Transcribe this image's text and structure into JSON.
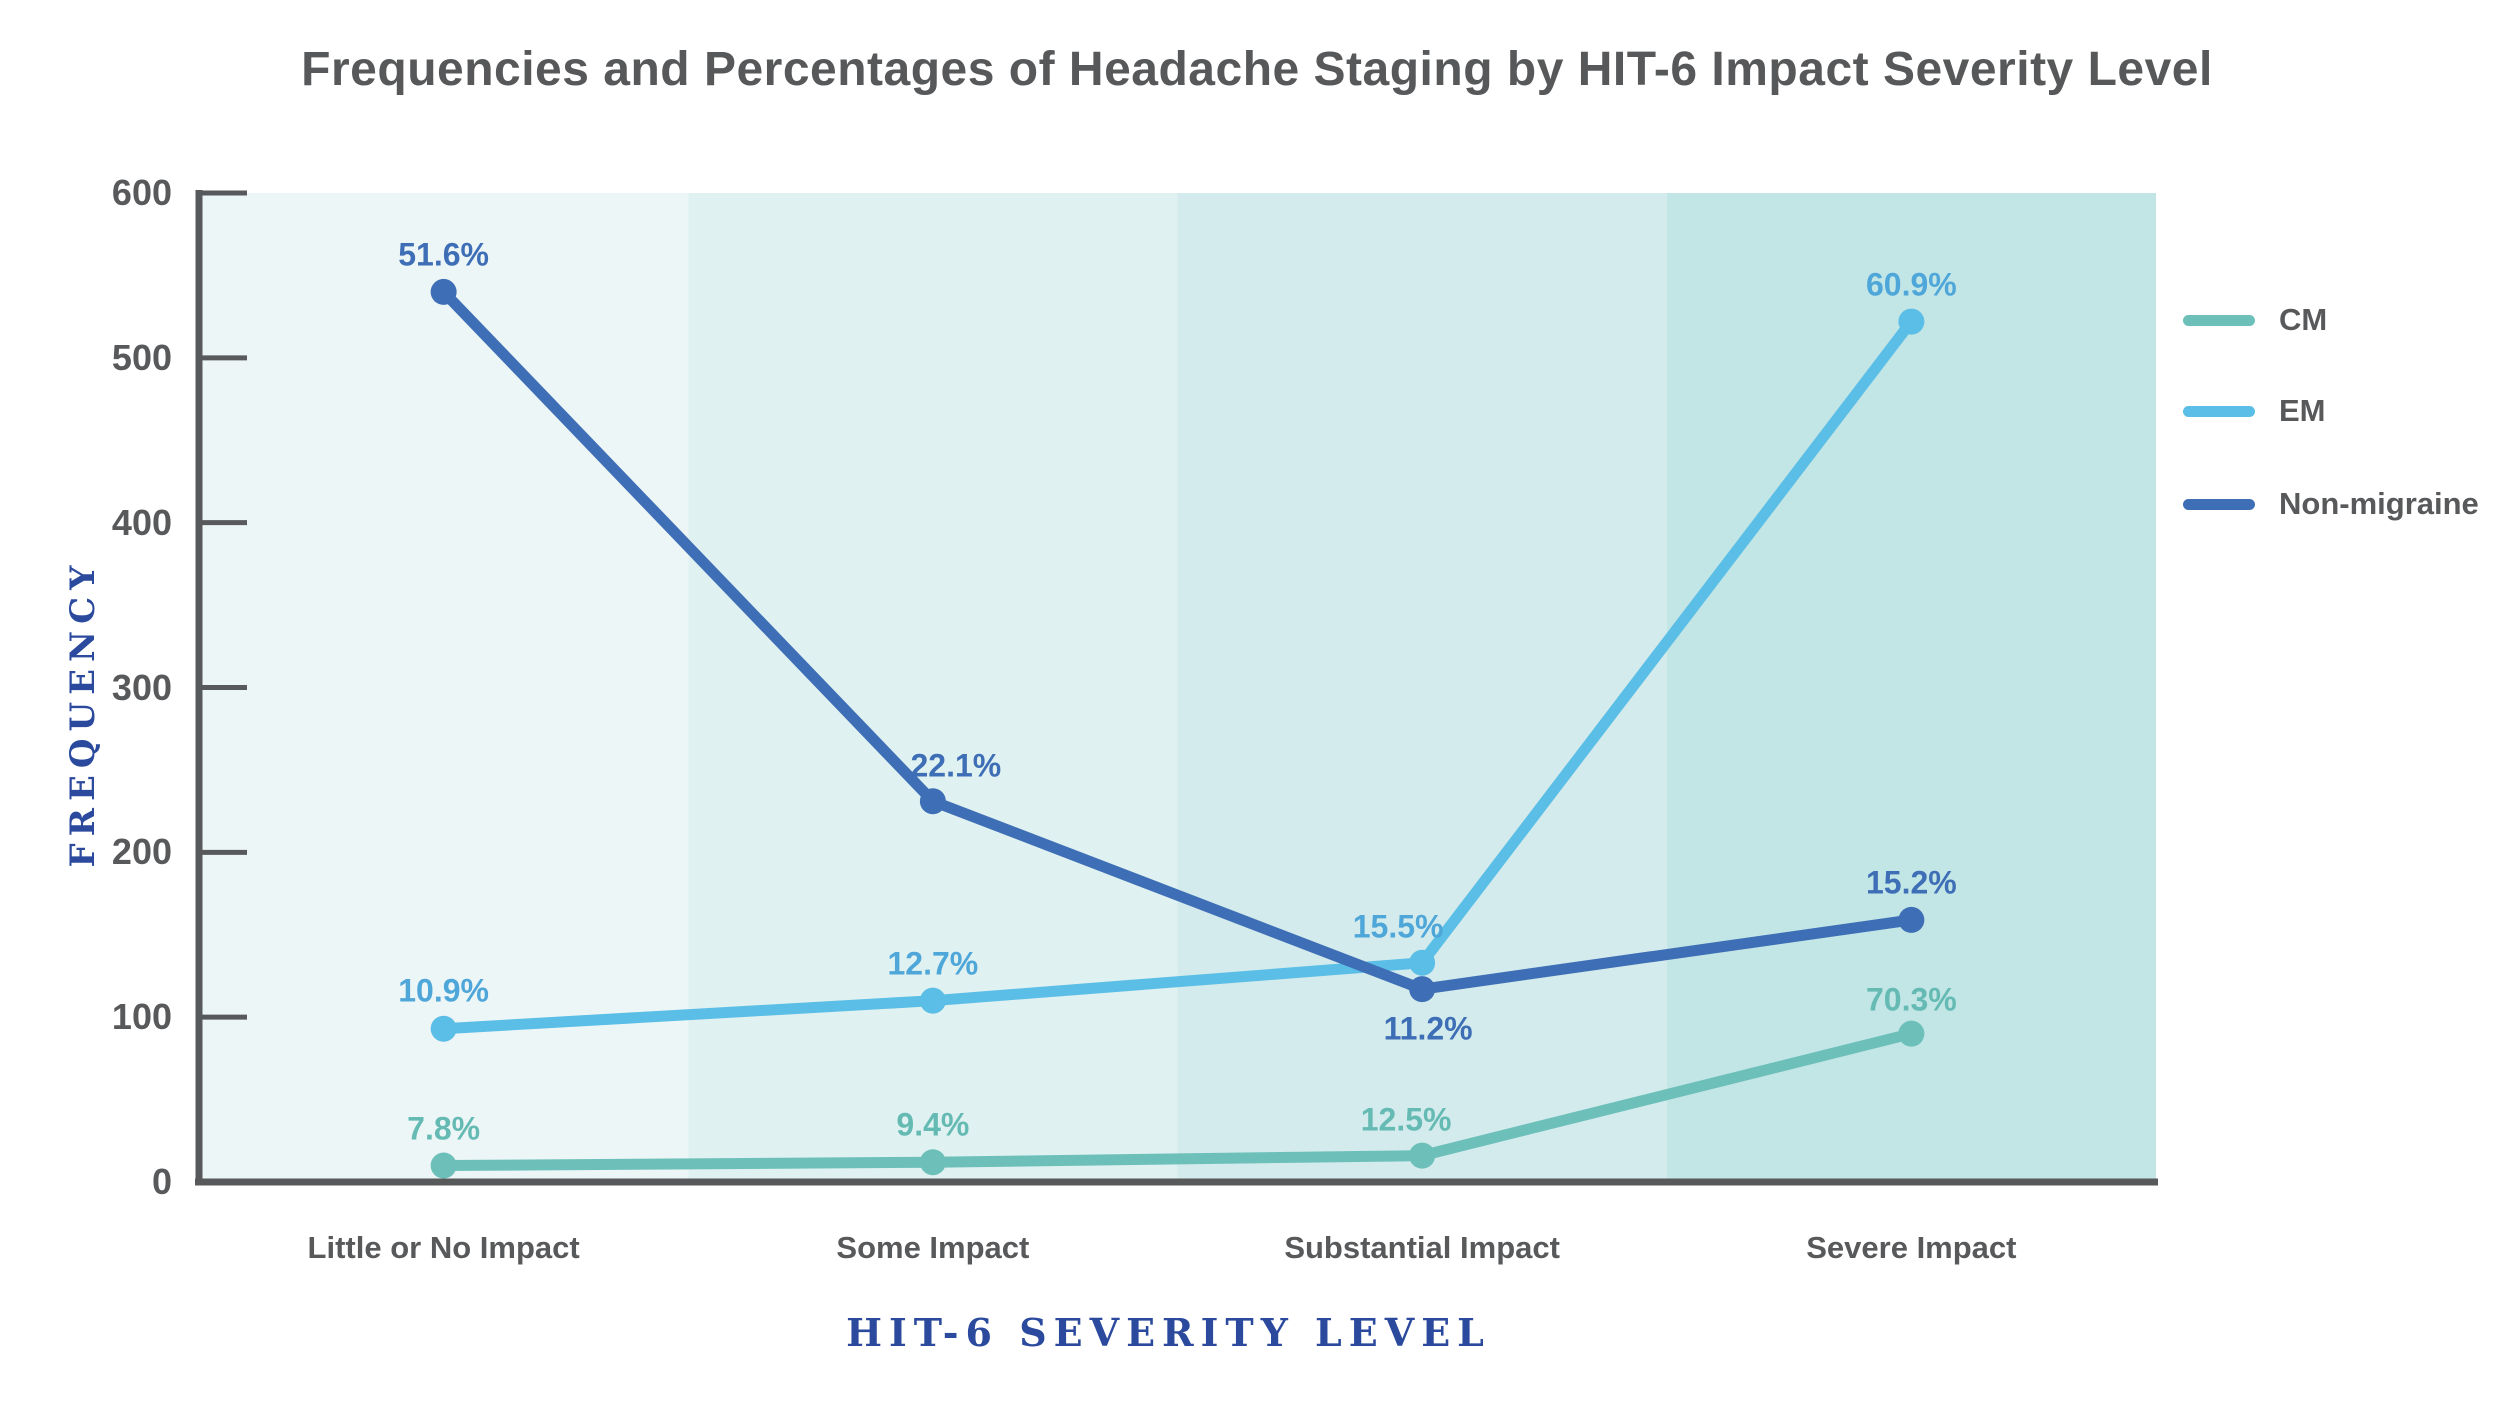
{
  "title": {
    "text": "Frequencies and Percentages of Headache Staging by HIT-6 Impact Severity Level",
    "color": "#57585A"
  },
  "axis": {
    "spine_color": "#58595B",
    "tick_label_color": "#58595B",
    "category_label_color": "#58595B",
    "axis_title_color": "#2B4A9E"
  },
  "chart_data": {
    "type": "line",
    "title": "Frequencies and Percentages of Headache Staging by HIT-6 Impact Severity Level",
    "xlabel": "HIT-6 SEVERITY LEVEL",
    "ylabel": "FREQUENCY",
    "ylim": [
      0,
      600
    ],
    "yticks": [
      0,
      100,
      200,
      300,
      400,
      500,
      600
    ],
    "grid": false,
    "legend_position": "right",
    "categories": [
      "Little or No Impact",
      "Some Impact",
      "Substantial Impact",
      "Severe Impact"
    ],
    "band_colors": [
      "#EDF6F7",
      "#E0F1F1",
      "#D3EBEC",
      "#C2E5E6"
    ],
    "series": [
      {
        "name": "CM",
        "color": "#6CC0B9",
        "label_color": "#65BAB3",
        "values": [
          10,
          12,
          16,
          90
        ],
        "point_labels": [
          "7.8%",
          "9.4%",
          "12.5%",
          "70.3%"
        ],
        "label_offsets": [
          [
            0,
            -37
          ],
          [
            0,
            -37
          ],
          [
            -16,
            -36
          ],
          [
            0,
            -34
          ]
        ]
      },
      {
        "name": "EM",
        "color": "#5BBEE6",
        "label_color": "#4FA7D9",
        "values": [
          93,
          110,
          133,
          522
        ],
        "point_labels": [
          "10.9%",
          "12.7%",
          "15.5%",
          "60.9%"
        ],
        "label_offsets": [
          [
            0,
            -38
          ],
          [
            0,
            -37
          ],
          [
            -24,
            -36
          ],
          [
            0,
            -37
          ]
        ]
      },
      {
        "name": "Non-migraine",
        "color": "#3E6EB5",
        "label_color": "#3E6EB5",
        "values": [
          540,
          231,
          117,
          159
        ],
        "point_labels": [
          "51.6%",
          "22.1%",
          "11.2%",
          "15.2%"
        ],
        "label_offsets": [
          [
            0,
            -37
          ],
          [
            23,
            -35
          ],
          [
            6,
            40
          ],
          [
            0,
            -37
          ]
        ]
      }
    ]
  }
}
